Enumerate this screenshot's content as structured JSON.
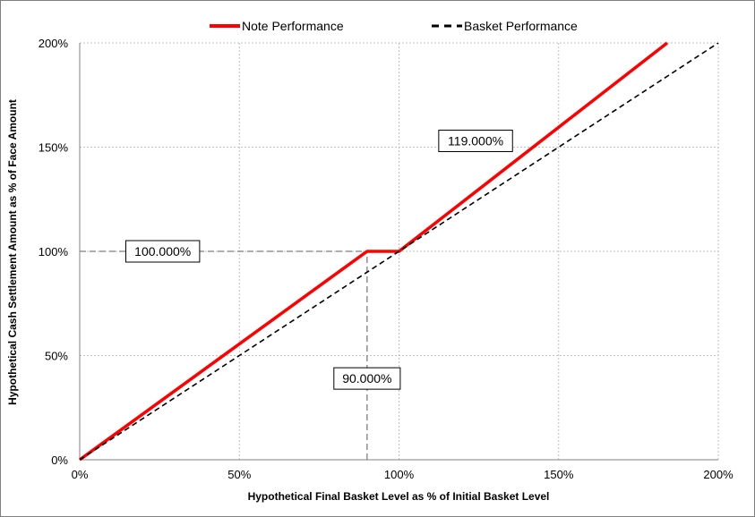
{
  "chart_data": {
    "type": "line",
    "title": "",
    "xlabel": "Hypothetical Final Basket Level as % of Initial Basket Level",
    "ylabel": "Hypothetical Cash Settlement Amount as % of Face Amount",
    "xlim": [
      0,
      200
    ],
    "ylim": [
      0,
      200
    ],
    "x_ticks": [
      0,
      50,
      100,
      150,
      200
    ],
    "y_ticks": [
      0,
      50,
      100,
      150,
      200
    ],
    "x_tick_labels": [
      "0%",
      "50%",
      "100%",
      "150%",
      "200%"
    ],
    "y_tick_labels": [
      "0%",
      "50%",
      "100%",
      "150%",
      "200%"
    ],
    "grid": true,
    "legend_position": "top",
    "series": [
      {
        "name": "Note Performance",
        "color": "#ff0000",
        "style": "solid",
        "points": [
          [
            0,
            0
          ],
          [
            90,
            100
          ],
          [
            100,
            100
          ],
          [
            184,
            200
          ]
        ]
      },
      {
        "name": "Basket Performance",
        "color": "#000000",
        "style": "dashed",
        "points": [
          [
            0,
            0
          ],
          [
            200,
            200
          ]
        ]
      }
    ],
    "reference_lines": [
      {
        "points": [
          [
            0,
            100
          ],
          [
            90,
            100
          ]
        ],
        "color": "#7f7f7f"
      },
      {
        "points": [
          [
            90,
            0
          ],
          [
            90,
            100
          ]
        ],
        "color": "#7f7f7f"
      }
    ],
    "annotations": [
      {
        "text": "100.000%",
        "x": 26,
        "y": 100
      },
      {
        "text": "90.000%",
        "x": 90,
        "y": 39
      },
      {
        "text": "119.000%",
        "x": 124,
        "y": 153
      }
    ]
  }
}
